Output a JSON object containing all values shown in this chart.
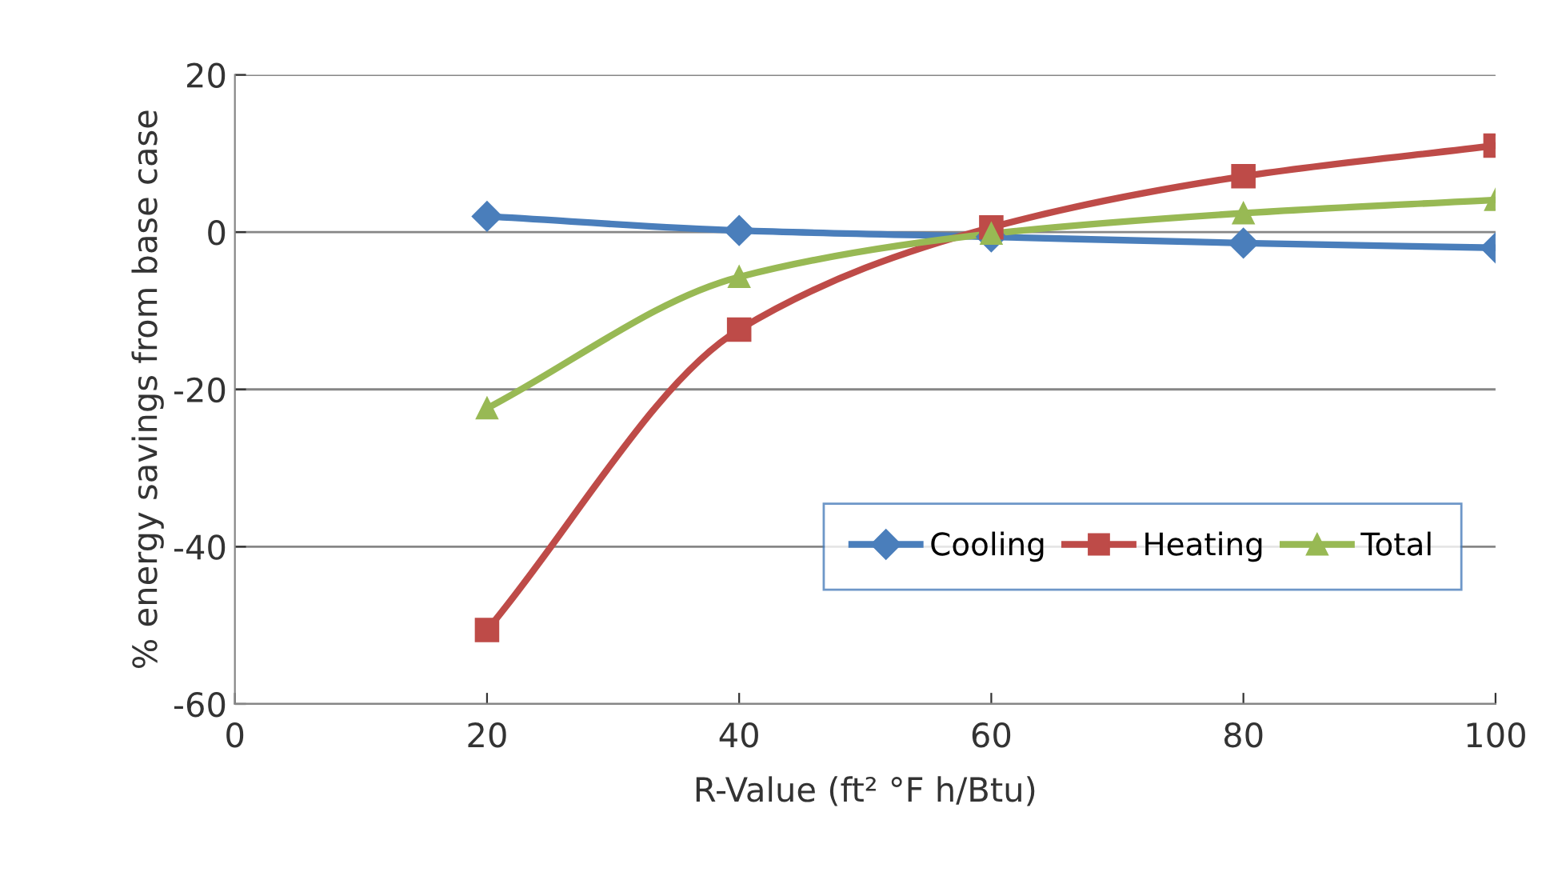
{
  "chart_data": {
    "type": "line",
    "xlabel": "R-Value (ft² °F h/Btu)",
    "ylabel": "% energy savings from base case",
    "x": [
      20,
      40,
      60,
      80,
      100
    ],
    "series": [
      {
        "name": "Cooling",
        "color": "#4a7ebb",
        "marker": "diamond",
        "values": [
          2.0,
          0.2,
          -0.6,
          -1.4,
          -2.0
        ]
      },
      {
        "name": "Heating",
        "color": "#be4b48",
        "marker": "square",
        "values": [
          -50.6,
          -12.4,
          0.6,
          7.1,
          11.0
        ]
      },
      {
        "name": "Total",
        "color": "#98b954",
        "marker": "triangle",
        "values": [
          -22.4,
          -5.7,
          -0.2,
          2.4,
          4.1
        ]
      }
    ],
    "xlim": [
      0,
      100
    ],
    "xticks": [
      0,
      20,
      40,
      60,
      80,
      100
    ],
    "ylim": [
      -60,
      20
    ],
    "yticks": [
      -60,
      -40,
      -20,
      0,
      20
    ],
    "grid": "y",
    "legend": "bottom right",
    "line_style": "solid"
  }
}
